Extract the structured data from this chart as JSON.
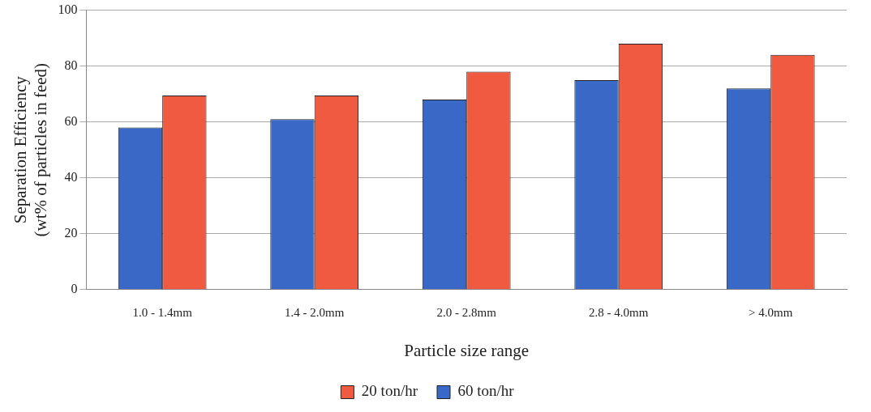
{
  "chart_data": {
    "type": "bar",
    "xlabel": "Particle size range",
    "ylabel": "Separation Efficiency\n(wt% of particles in feed)",
    "categories": [
      "1.0 - 1.4mm",
      "1.4 - 2.0mm",
      "2.0 - 2.8mm",
      "2.8 - 4.0mm",
      "> 4.0mm"
    ],
    "series": [
      {
        "name": "60 ton/hr",
        "color": "#3a68c6",
        "values": [
          58,
          61,
          68,
          75,
          72
        ]
      },
      {
        "name": "20 ton/hr",
        "color": "#f05a40",
        "values": [
          69.5,
          69.5,
          78,
          88,
          84
        ]
      }
    ],
    "ylim": [
      0,
      100
    ],
    "yticks": [
      0,
      20,
      40,
      60,
      80,
      100
    ],
    "grid": "y",
    "legend": "bottom"
  }
}
